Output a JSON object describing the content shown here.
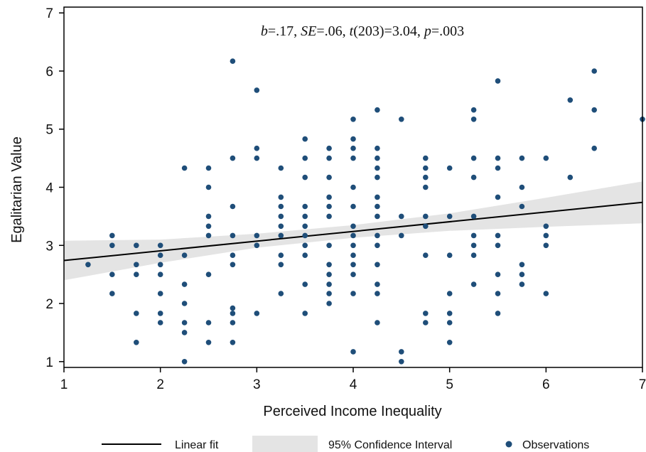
{
  "chart_data": {
    "type": "scatter",
    "xlabel": "Perceived Income Inequality",
    "ylabel": "Egalitarian Value",
    "xlim": [
      1,
      7
    ],
    "ylim": [
      0.9,
      7.1
    ],
    "x_ticks": [
      "1",
      "2",
      "3",
      "4",
      "5",
      "6",
      "7"
    ],
    "y_ticks": [
      "1",
      "2",
      "3",
      "4",
      "5",
      "6",
      "7"
    ],
    "grid": false,
    "legend_position": "bottom",
    "stat_annotation": {
      "b_label": "b",
      "b_value": "=.17, ",
      "se_label": "SE",
      "se_value": "=.06, ",
      "t_label": "t",
      "t_value": "(203)=3.04, ",
      "p_label": "p",
      "p_value": "=.003"
    },
    "fit_line": {
      "name": "Linear fit",
      "x": [
        1,
        7
      ],
      "y": [
        2.74,
        3.74
      ]
    },
    "confidence_band": {
      "name": "95% Confidence Interval",
      "x": [
        1,
        2,
        3,
        4,
        5,
        6,
        7
      ],
      "lower": [
        2.4,
        2.7,
        2.96,
        3.13,
        3.25,
        3.32,
        3.38
      ],
      "upper": [
        3.08,
        3.1,
        3.2,
        3.35,
        3.55,
        3.82,
        4.1
      ]
    },
    "observations": {
      "name": "Observations",
      "points": [
        [
          1.25,
          2.67
        ],
        [
          1.5,
          3.17
        ],
        [
          1.5,
          3.0
        ],
        [
          1.5,
          2.5
        ],
        [
          1.5,
          2.17
        ],
        [
          1.75,
          3.0
        ],
        [
          1.75,
          2.67
        ],
        [
          1.75,
          2.5
        ],
        [
          1.75,
          1.83
        ],
        [
          1.75,
          1.33
        ],
        [
          2,
          3.0
        ],
        [
          2,
          2.83
        ],
        [
          2,
          2.67
        ],
        [
          2,
          2.5
        ],
        [
          2,
          2.17
        ],
        [
          2,
          1.83
        ],
        [
          2,
          1.67
        ],
        [
          2.25,
          4.33
        ],
        [
          2.25,
          2.83
        ],
        [
          2.25,
          2.33
        ],
        [
          2.25,
          2.0
        ],
        [
          2.25,
          1.67
        ],
        [
          2.25,
          1.5
        ],
        [
          2.25,
          1.0
        ],
        [
          2.5,
          4.33
        ],
        [
          2.5,
          4.0
        ],
        [
          2.5,
          3.5
        ],
        [
          2.5,
          3.33
        ],
        [
          2.5,
          3.17
        ],
        [
          2.5,
          2.5
        ],
        [
          2.5,
          1.67
        ],
        [
          2.5,
          1.33
        ],
        [
          2.75,
          6.17
        ],
        [
          2.75,
          4.5
        ],
        [
          2.75,
          3.67
        ],
        [
          2.75,
          3.17
        ],
        [
          2.75,
          2.83
        ],
        [
          2.75,
          2.67
        ],
        [
          2.75,
          1.92
        ],
        [
          2.75,
          1.83
        ],
        [
          2.75,
          1.67
        ],
        [
          2.75,
          1.33
        ],
        [
          3,
          5.67
        ],
        [
          3,
          4.67
        ],
        [
          3,
          4.5
        ],
        [
          3,
          3.17
        ],
        [
          3,
          3.0
        ],
        [
          3,
          1.83
        ],
        [
          3.25,
          4.33
        ],
        [
          3.25,
          3.83
        ],
        [
          3.25,
          3.67
        ],
        [
          3.25,
          3.5
        ],
        [
          3.25,
          3.33
        ],
        [
          3.25,
          3.17
        ],
        [
          3.25,
          2.83
        ],
        [
          3.25,
          2.67
        ],
        [
          3.25,
          2.17
        ],
        [
          3.5,
          4.83
        ],
        [
          3.5,
          4.5
        ],
        [
          3.5,
          4.17
        ],
        [
          3.5,
          3.67
        ],
        [
          3.5,
          3.5
        ],
        [
          3.5,
          3.33
        ],
        [
          3.5,
          3.17
        ],
        [
          3.5,
          3.0
        ],
        [
          3.5,
          2.83
        ],
        [
          3.5,
          2.33
        ],
        [
          3.5,
          1.83
        ],
        [
          3.75,
          4.67
        ],
        [
          3.75,
          4.5
        ],
        [
          3.75,
          4.17
        ],
        [
          3.75,
          3.83
        ],
        [
          3.75,
          3.67
        ],
        [
          3.75,
          3.5
        ],
        [
          3.75,
          3.0
        ],
        [
          3.75,
          2.67
        ],
        [
          3.75,
          2.5
        ],
        [
          3.75,
          2.33
        ],
        [
          3.75,
          2.17
        ],
        [
          3.75,
          2.0
        ],
        [
          4,
          5.17
        ],
        [
          4,
          4.83
        ],
        [
          4,
          4.67
        ],
        [
          4,
          4.5
        ],
        [
          4,
          4.0
        ],
        [
          4,
          3.67
        ],
        [
          4,
          3.33
        ],
        [
          4,
          3.17
        ],
        [
          4,
          3.0
        ],
        [
          4,
          2.83
        ],
        [
          4,
          2.67
        ],
        [
          4,
          2.5
        ],
        [
          4,
          2.17
        ],
        [
          4,
          1.17
        ],
        [
          4.25,
          5.33
        ],
        [
          4.25,
          4.67
        ],
        [
          4.25,
          4.5
        ],
        [
          4.25,
          4.33
        ],
        [
          4.25,
          4.17
        ],
        [
          4.25,
          3.83
        ],
        [
          4.25,
          3.67
        ],
        [
          4.25,
          3.5
        ],
        [
          4.25,
          3.17
        ],
        [
          4.25,
          3.0
        ],
        [
          4.25,
          2.67
        ],
        [
          4.25,
          2.33
        ],
        [
          4.25,
          2.17
        ],
        [
          4.25,
          1.67
        ],
        [
          4.5,
          5.17
        ],
        [
          4.5,
          3.5
        ],
        [
          4.5,
          3.17
        ],
        [
          4.5,
          1.17
        ],
        [
          4.5,
          1.0
        ],
        [
          4.75,
          4.5
        ],
        [
          4.75,
          4.33
        ],
        [
          4.75,
          4.17
        ],
        [
          4.75,
          4.0
        ],
        [
          4.75,
          3.5
        ],
        [
          4.75,
          3.33
        ],
        [
          4.75,
          2.83
        ],
        [
          4.75,
          1.83
        ],
        [
          4.75,
          1.67
        ],
        [
          5,
          4.33
        ],
        [
          5,
          3.5
        ],
        [
          5,
          2.83
        ],
        [
          5,
          2.17
        ],
        [
          5,
          1.83
        ],
        [
          5,
          1.67
        ],
        [
          5,
          1.33
        ],
        [
          5.25,
          5.33
        ],
        [
          5.25,
          5.17
        ],
        [
          5.25,
          4.5
        ],
        [
          5.25,
          4.17
        ],
        [
          5.25,
          3.5
        ],
        [
          5.25,
          3.17
        ],
        [
          5.25,
          3.0
        ],
        [
          5.25,
          2.83
        ],
        [
          5.25,
          2.33
        ],
        [
          5.5,
          5.83
        ],
        [
          5.5,
          4.5
        ],
        [
          5.5,
          4.33
        ],
        [
          5.5,
          3.83
        ],
        [
          5.5,
          3.17
        ],
        [
          5.5,
          3.0
        ],
        [
          5.5,
          2.5
        ],
        [
          5.5,
          2.17
        ],
        [
          5.5,
          1.83
        ],
        [
          5.75,
          4.5
        ],
        [
          5.75,
          4.0
        ],
        [
          5.75,
          3.67
        ],
        [
          5.75,
          2.67
        ],
        [
          5.75,
          2.5
        ],
        [
          5.75,
          2.33
        ],
        [
          6,
          4.5
        ],
        [
          6,
          3.33
        ],
        [
          6,
          3.17
        ],
        [
          6,
          3.0
        ],
        [
          6,
          2.17
        ],
        [
          6.25,
          5.5
        ],
        [
          6.25,
          4.17
        ],
        [
          6.5,
          6.0
        ],
        [
          6.5,
          5.33
        ],
        [
          6.5,
          4.67
        ],
        [
          7,
          5.17
        ]
      ]
    },
    "colors": {
      "point": "#1f4e79",
      "fit_line": "#000000",
      "band": "#e4e4e4"
    }
  }
}
